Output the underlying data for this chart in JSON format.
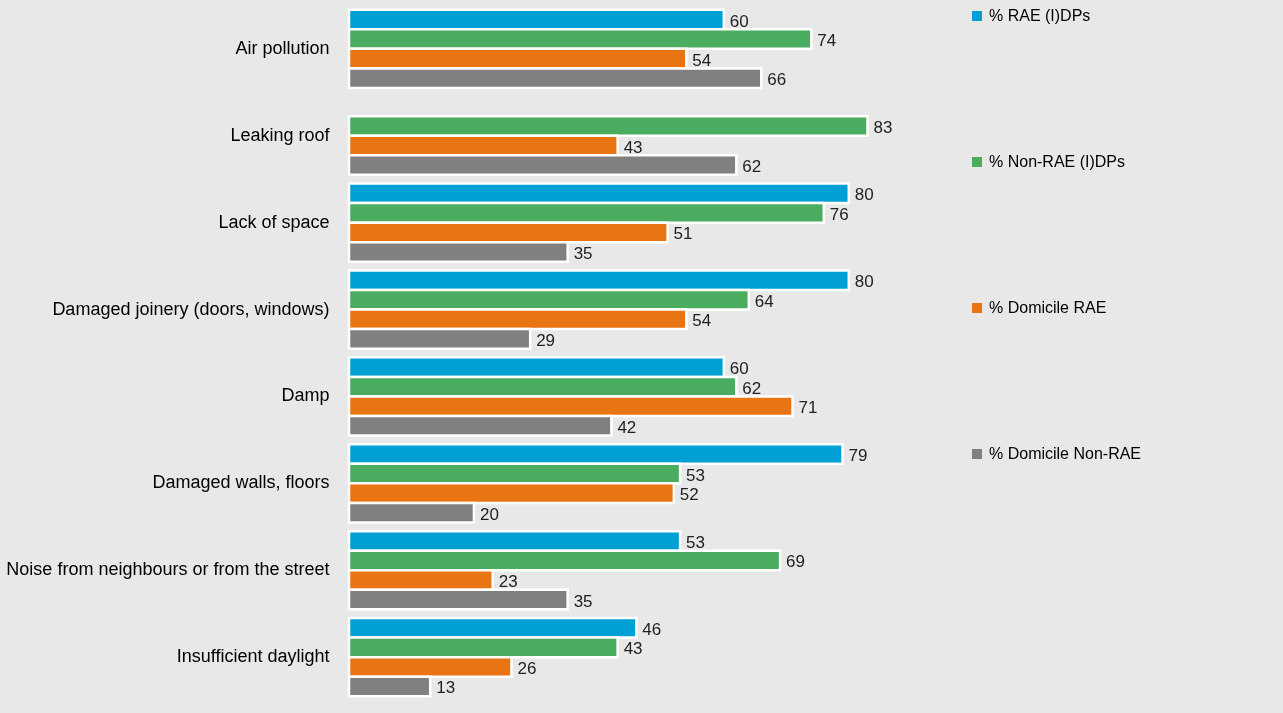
{
  "chart_data": {
    "type": "bar",
    "orientation": "horizontal",
    "data_labels": true,
    "legend": "right",
    "categories": [
      "Air pollution",
      "Leaking roof",
      "Lack of space",
      "Damaged joinery (doors, windows)",
      "Damp",
      "Damaged walls, floors",
      "Noise from neighbours or from the street",
      "Insufficient daylight"
    ],
    "series": [
      {
        "name": "% RAE (I)DPs",
        "color": "#009fd4",
        "values": [
          60,
          null,
          80,
          80,
          60,
          79,
          53,
          46
        ]
      },
      {
        "name": "% Non-RAE (I)DPs",
        "color": "#4aac5e",
        "values": [
          74,
          83,
          76,
          64,
          62,
          53,
          69,
          43
        ]
      },
      {
        "name": "% Domicile RAE",
        "color": "#e87511",
        "values": [
          54,
          43,
          51,
          54,
          71,
          52,
          23,
          26
        ]
      },
      {
        "name": "% Domicile Non-RAE",
        "color": "#808080",
        "values": [
          66,
          62,
          35,
          29,
          42,
          20,
          35,
          13
        ]
      }
    ]
  }
}
